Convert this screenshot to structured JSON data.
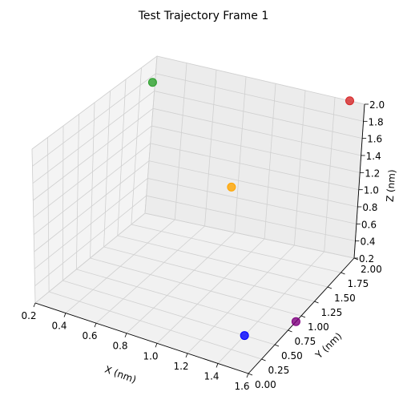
{
  "chart_data": {
    "type": "scatter",
    "projection": "3d",
    "title": "Test Trajectory Frame 1",
    "xlabel": "X (nm)",
    "ylabel": "Y (nm)",
    "zlabel": "Z (nm)",
    "xlim": [
      0.2,
      1.6
    ],
    "ylim": [
      0.0,
      2.0
    ],
    "zlim": [
      0.2,
      2.0
    ],
    "xticks": [
      "0.2",
      "0.4",
      "0.6",
      "0.8",
      "1.0",
      "1.2",
      "1.4",
      "1.6"
    ],
    "yticks": [
      "0.00",
      "0.25",
      "0.50",
      "0.75",
      "1.00",
      "1.25",
      "1.50",
      "1.75",
      "2.00"
    ],
    "zticks": [
      "0.2",
      "0.4",
      "0.6",
      "0.8",
      "1.0",
      "1.2",
      "1.4",
      "1.6",
      "1.8",
      "2.0"
    ],
    "grid": true,
    "points": [
      {
        "x": 0.3,
        "y": 1.7,
        "z": 1.9,
        "color": "#2ca02c"
      },
      {
        "x": 1.5,
        "y": 2.0,
        "z": 2.0,
        "color": "#d62728"
      },
      {
        "x": 0.9,
        "y": 1.6,
        "z": 1.0,
        "color": "#ffa500"
      },
      {
        "x": 1.4,
        "y": 0.5,
        "z": 0.2,
        "color": "#0000ff"
      },
      {
        "x": 1.6,
        "y": 0.9,
        "z": 0.1,
        "color": "#800080"
      }
    ]
  }
}
